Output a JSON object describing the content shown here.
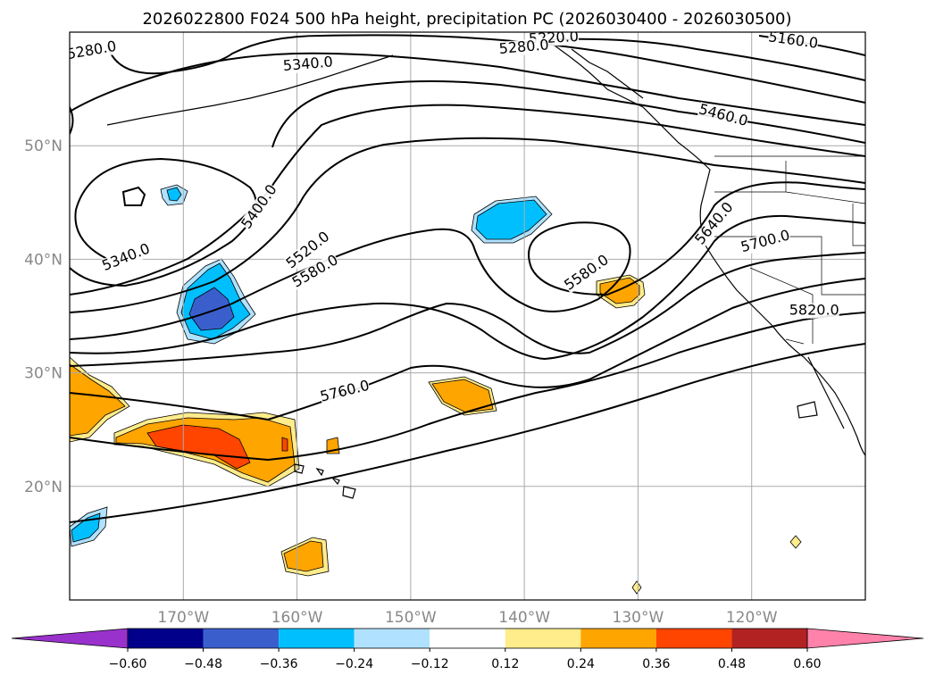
{
  "title": "2026022800 F024 500 hPa height, precipitation PC (2026030400 - 2026030500)",
  "map": {
    "lon_range": [
      -180,
      -110
    ],
    "lat_range": [
      10,
      60
    ],
    "lon_ticks": [
      {
        "lon": -170,
        "label": "170°W"
      },
      {
        "lon": -160,
        "label": "160°W"
      },
      {
        "lon": -150,
        "label": "150°W"
      },
      {
        "lon": -140,
        "label": "140°W"
      },
      {
        "lon": -130,
        "label": "130°W"
      },
      {
        "lon": -120,
        "label": "120°W"
      }
    ],
    "lat_ticks": [
      {
        "lat": 50,
        "label": "50°N"
      },
      {
        "lat": 40,
        "label": "40°N"
      },
      {
        "lat": 30,
        "label": "30°N"
      },
      {
        "lat": 20,
        "label": "20°N"
      }
    ],
    "grid": true
  },
  "contour_labels": [
    {
      "text": "5220.0",
      "lon": -137.4,
      "lat": 59.1,
      "angle": -3
    },
    {
      "text": "5160.0",
      "lon": -116.4,
      "lat": 58.9,
      "angle": 8
    },
    {
      "text": "5280.0",
      "lon": -178.0,
      "lat": 58.0,
      "angle": -10
    },
    {
      "text": "5280.0",
      "lon": -140.0,
      "lat": 58.3,
      "angle": -5
    },
    {
      "text": "5340.0",
      "lon": -159.0,
      "lat": 56.8,
      "angle": -5
    },
    {
      "text": "5460.0",
      "lon": -122.6,
      "lat": 52.3,
      "angle": 15
    },
    {
      "text": "5400.0",
      "lon": -163.0,
      "lat": 44.4,
      "angle": -55
    },
    {
      "text": "5340.0",
      "lon": -174.9,
      "lat": 39.8,
      "angle": -22
    },
    {
      "text": "5520.0",
      "lon": -158.8,
      "lat": 40.5,
      "angle": -38
    },
    {
      "text": "5580.0",
      "lon": -158.2,
      "lat": 38.6,
      "angle": -30
    },
    {
      "text": "5580.0",
      "lon": -134.3,
      "lat": 38.5,
      "angle": -35
    },
    {
      "text": "5640.0",
      "lon": -123.0,
      "lat": 42.9,
      "angle": -50
    },
    {
      "text": "5700.0",
      "lon": -118.7,
      "lat": 41.2,
      "angle": -15
    },
    {
      "text": "5820.0",
      "lon": -114.5,
      "lat": 35.1,
      "angle": 0
    },
    {
      "text": "5760.0",
      "lon": -155.7,
      "lat": 28.0,
      "angle": -14
    }
  ],
  "colorbar": {
    "boundaries": [
      -0.72,
      -0.6,
      -0.48,
      -0.36,
      -0.24,
      -0.12,
      0.12,
      0.24,
      0.36,
      0.48,
      0.6,
      0.72
    ],
    "colors": [
      "#9932cc",
      "#00008b",
      "#3a5fcd",
      "#00bfff",
      "#b0e2ff",
      "#ffffff",
      "#ffec8b",
      "#ffa500",
      "#ff4500",
      "#b22222",
      "#ff82ab",
      "#ff82ab"
    ],
    "extend": "both",
    "tick_labels": [
      "−0.60",
      "−0.48",
      "−0.36",
      "−0.24",
      "−0.12",
      "0.12",
      "0.24",
      "0.36",
      "0.48",
      "0.60"
    ]
  }
}
